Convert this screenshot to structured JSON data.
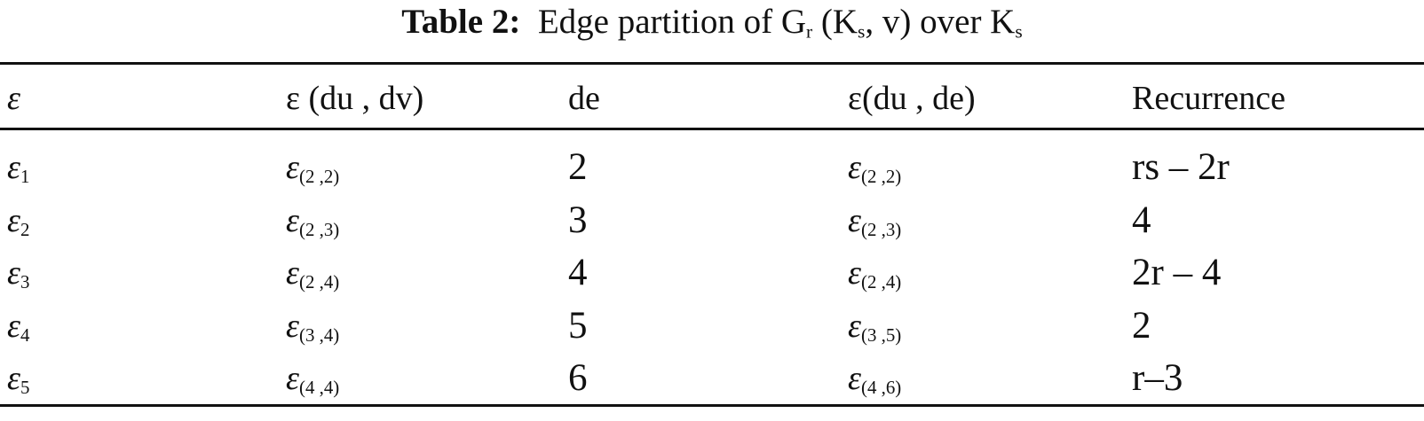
{
  "title": {
    "label": "Table 2:",
    "text_1": "Edge partition of G",
    "sub_1": "r",
    "text_2": " (K",
    "sub_2": "s",
    "text_3": ", v) over K",
    "sub_3": "s"
  },
  "columns": {
    "c0": "ε",
    "c1": "ε (du , dv)",
    "c2": "de",
    "c3": "ε(du , de)",
    "c4": "Recurrence"
  },
  "rows": [
    {
      "edge_sub": "1",
      "duv_sub": "(2 ,2)",
      "de": "2",
      "dude_sub": "(2 ,2)",
      "recurrence": "rs – 2r"
    },
    {
      "edge_sub": "2",
      "duv_sub": "(2 ,3)",
      "de": "3",
      "dude_sub": "(2 ,3)",
      "recurrence": "4"
    },
    {
      "edge_sub": "3",
      "duv_sub": "(2 ,4)",
      "de": "4",
      "dude_sub": "(2 ,4)",
      "recurrence": "2r – 4"
    },
    {
      "edge_sub": "4",
      "duv_sub": "(3 ,4)",
      "de": "5",
      "dude_sub": "(3 ,5)",
      "recurrence": "2"
    },
    {
      "edge_sub": "5",
      "duv_sub": "(4 ,4)",
      "de": "6",
      "dude_sub": "(4 ,6)",
      "recurrence": "r–3"
    }
  ],
  "symbol": "ε"
}
